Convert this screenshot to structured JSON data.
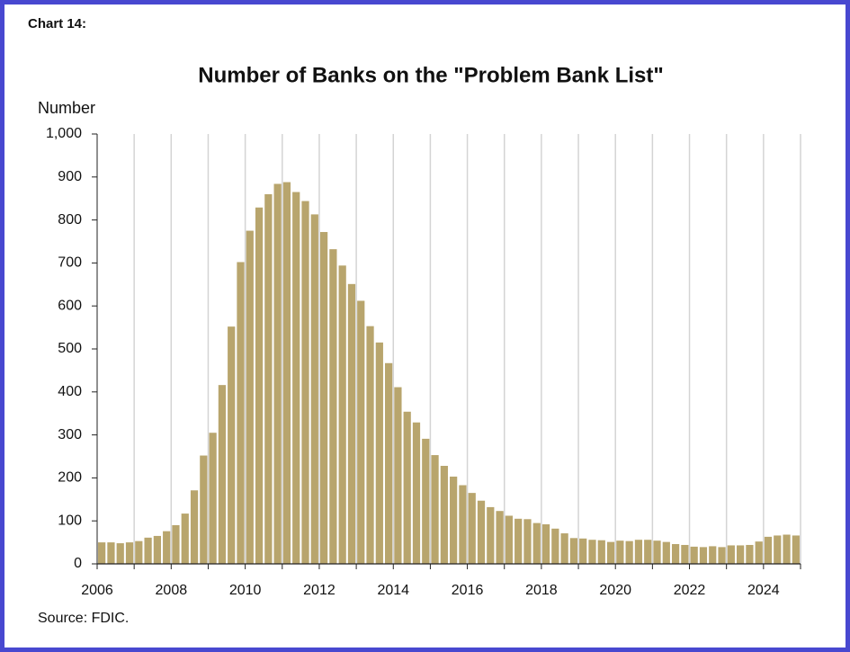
{
  "chart_data": {
    "type": "bar",
    "chart_label": "Chart 14:",
    "title": "Number of Banks on the \"Problem Bank List\"",
    "y_label": "Number",
    "source": "Source: FDIC.",
    "color": "#b8a56d",
    "x": [
      2006,
      2006.25,
      2006.5,
      2006.75,
      2007,
      2007.25,
      2007.5,
      2007.75,
      2008,
      2008.25,
      2008.5,
      2008.75,
      2009,
      2009.25,
      2009.5,
      2009.75,
      2010,
      2010.25,
      2010.5,
      2010.75,
      2011,
      2011.25,
      2011.5,
      2011.75,
      2012,
      2012.25,
      2012.5,
      2012.75,
      2013,
      2013.25,
      2013.5,
      2013.75,
      2014,
      2014.25,
      2014.5,
      2014.75,
      2015,
      2015.25,
      2015.5,
      2015.75,
      2016,
      2016.25,
      2016.5,
      2016.75,
      2017,
      2017.25,
      2017.5,
      2017.75,
      2018,
      2018.25,
      2018.5,
      2018.75,
      2019,
      2019.25,
      2019.5,
      2019.75,
      2020,
      2020.25,
      2020.5,
      2020.75,
      2021,
      2021.25,
      2021.5,
      2021.75,
      2022,
      2022.25,
      2022.5,
      2022.75,
      2023,
      2023.25,
      2023.5,
      2023.75,
      2024,
      2024.25,
      2024.5,
      2024.75
    ],
    "values": [
      50,
      50,
      48,
      50,
      53,
      61,
      65,
      76,
      90,
      117,
      171,
      252,
      305,
      416,
      552,
      702,
      775,
      829,
      860,
      884,
      888,
      865,
      844,
      813,
      772,
      732,
      694,
      651,
      612,
      553,
      515,
      467,
      411,
      354,
      329,
      291,
      253,
      228,
      203,
      183,
      165,
      147,
      132,
      123,
      112,
      105,
      104,
      95,
      92,
      82,
      71,
      60,
      59,
      56,
      55,
      51,
      54,
      53,
      56,
      56,
      54,
      51,
      46,
      44,
      40,
      39,
      41,
      39,
      43,
      43,
      44,
      52,
      63,
      66,
      68,
      66
    ],
    "bar_span": 0.25,
    "xlim": [
      2006,
      2025
    ],
    "xticks": [
      2006,
      2008,
      2010,
      2012,
      2014,
      2016,
      2018,
      2020,
      2022,
      2024
    ],
    "xminorticks": [
      2006,
      2007,
      2008,
      2009,
      2010,
      2011,
      2012,
      2013,
      2014,
      2015,
      2016,
      2017,
      2018,
      2019,
      2020,
      2021,
      2022,
      2023,
      2024,
      2025
    ],
    "ylim": [
      0,
      1000
    ],
    "yticks": [
      0,
      100,
      200,
      300,
      400,
      500,
      600,
      700,
      800,
      900,
      {
        "value": 1000,
        "label": "1,000"
      }
    ],
    "xgrid": true
  }
}
